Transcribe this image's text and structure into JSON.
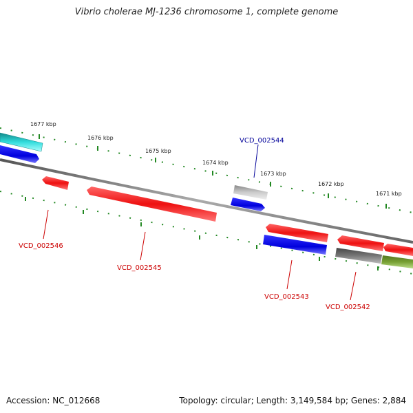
{
  "title": "Vibrio cholerae MJ-1236 chromosome 1, complete genome",
  "footer": {
    "accession": "Accession: NC_012668",
    "summary": "Topology: circular; Length: 3,149,584 bp; Genes: 2,884"
  },
  "tick_labels": [
    "1677 kbp",
    "1676 kbp",
    "1675 kbp",
    "1674 kbp",
    "1673 kbp",
    "1672 kbp",
    "1671 kbp"
  ],
  "gene_labels": [
    "VCD_002544",
    "VCD_002546",
    "VCD_002545",
    "VCD_002543",
    "VCD_002542"
  ],
  "colors": {
    "red": "#ee1111",
    "blue": "#1111ee",
    "cyan": "#22cccc",
    "gray": "#bbbbbb",
    "darkgray": "#666666",
    "olive": "#77a033",
    "tick_green": "#228822",
    "label_red": "#cc0000",
    "label_blue": "#000099"
  }
}
